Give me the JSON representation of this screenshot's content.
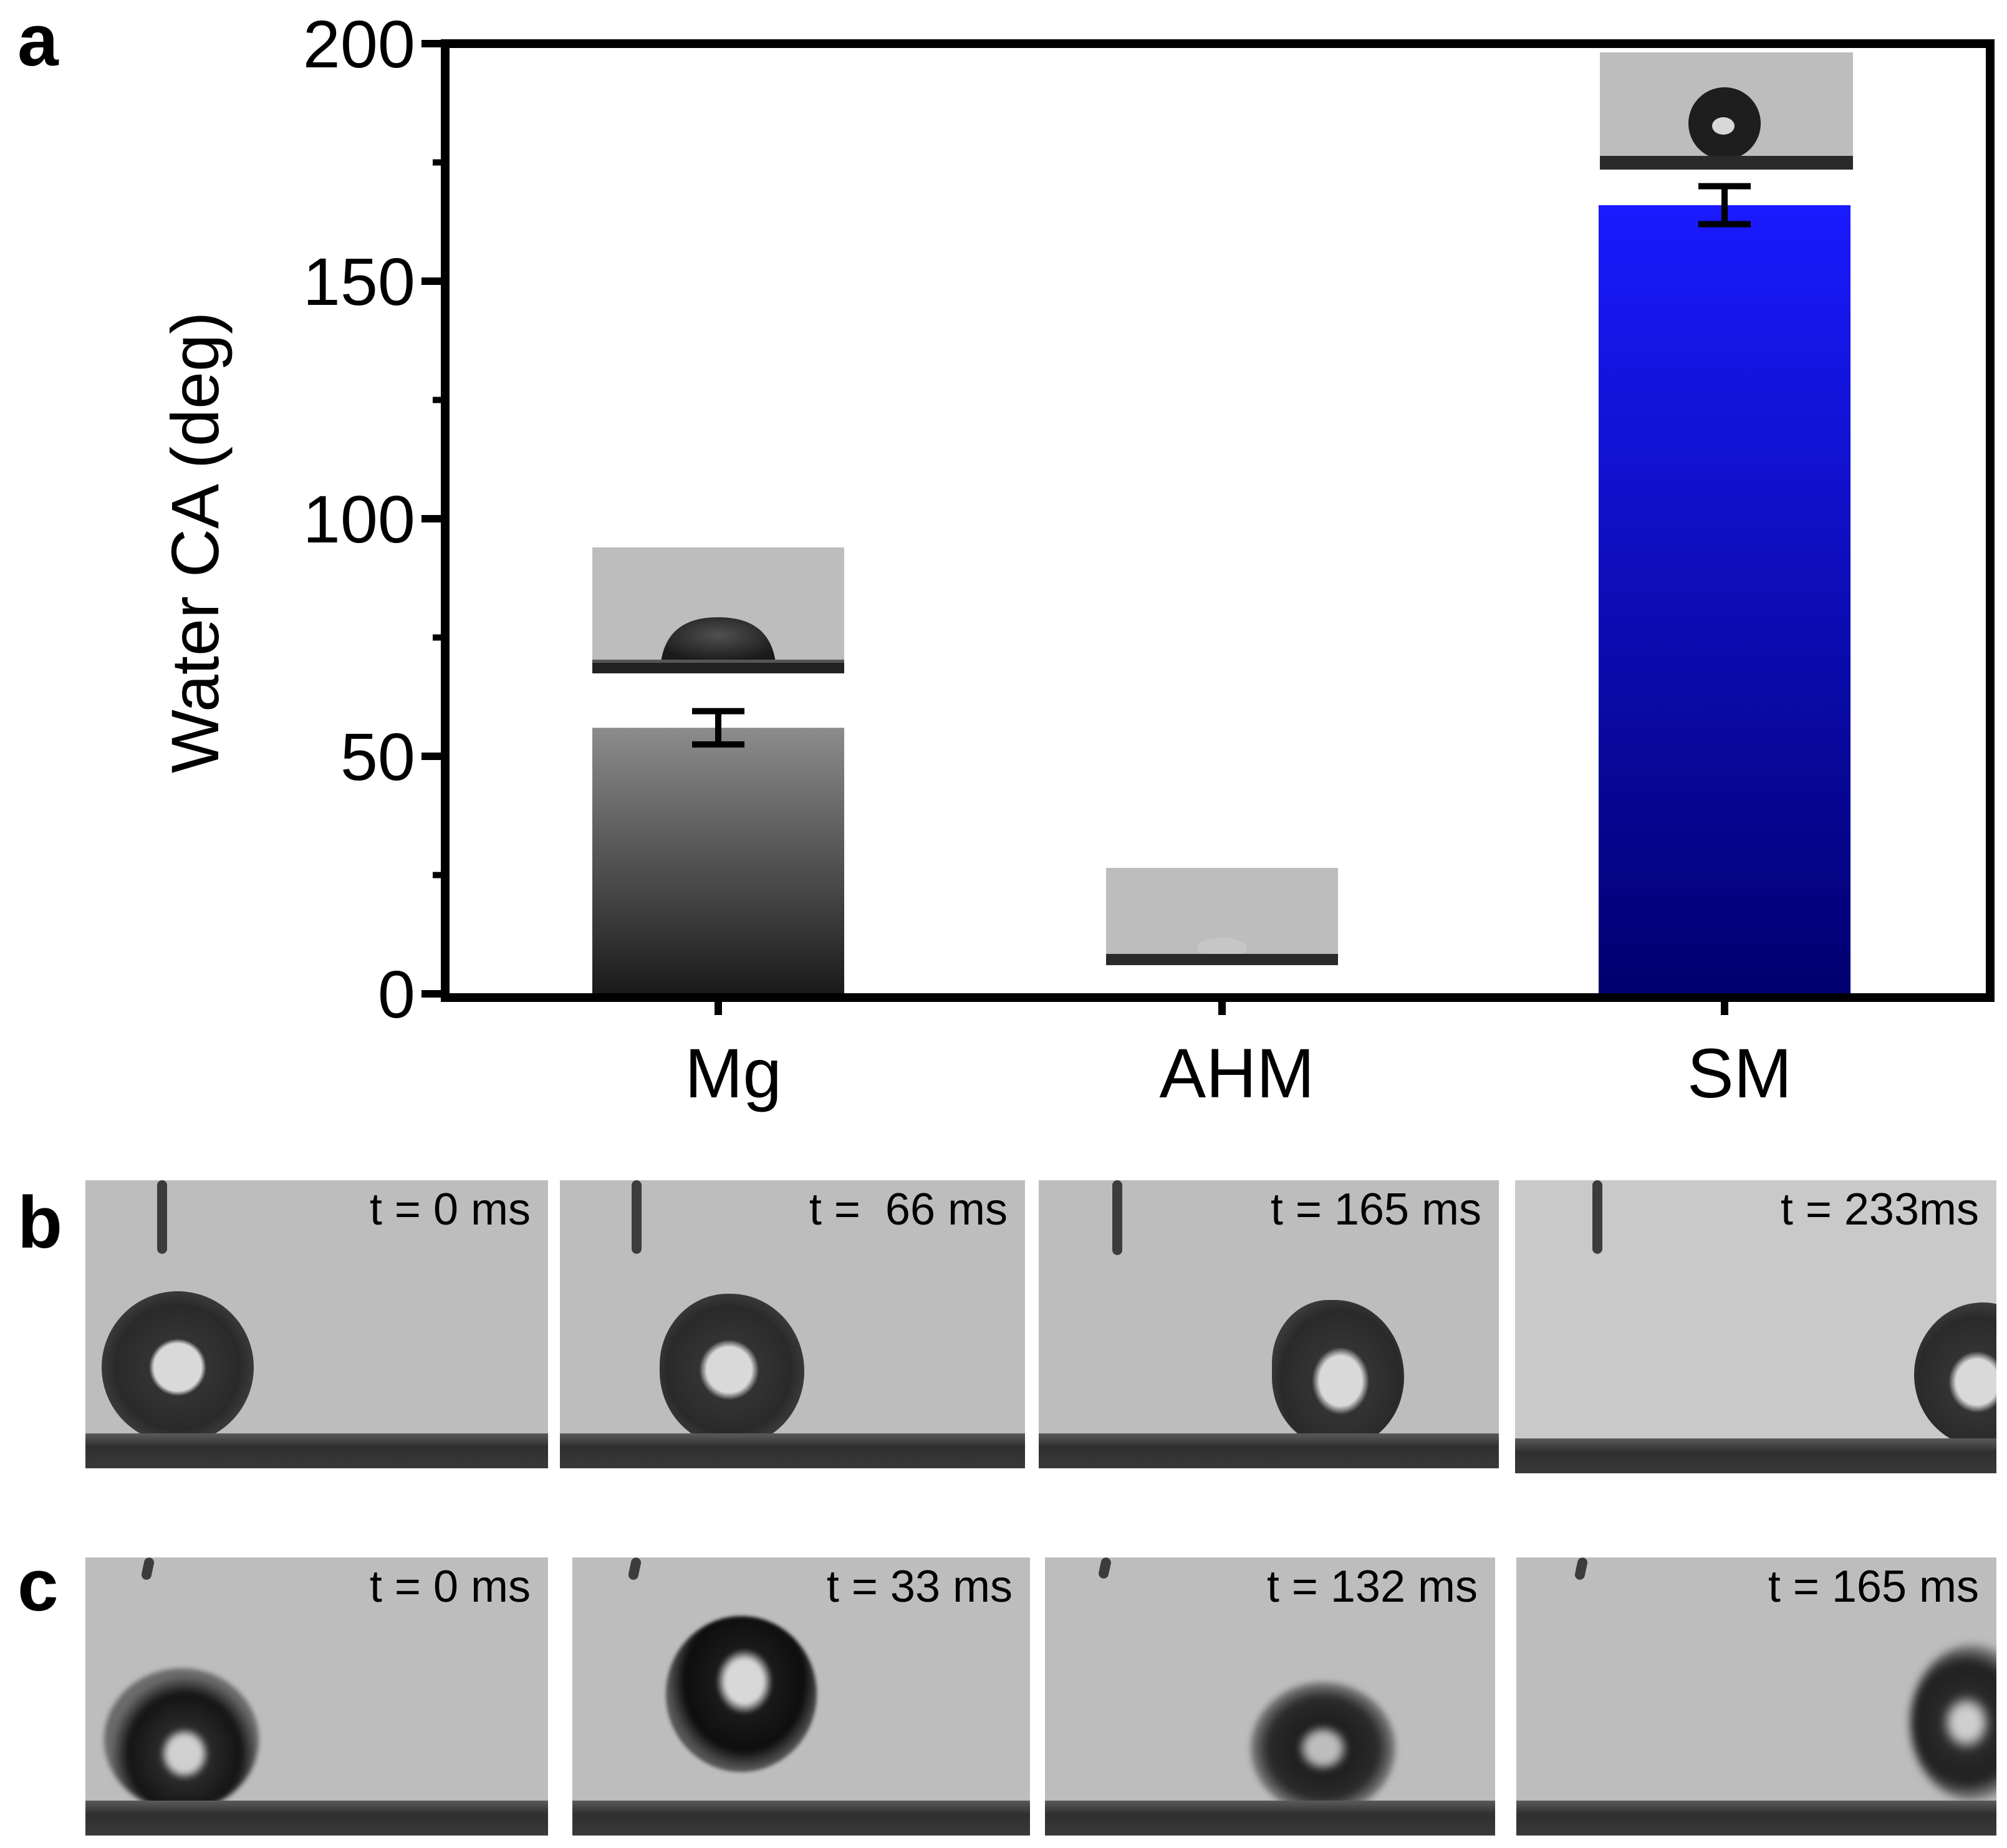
{
  "panels": {
    "a": "a",
    "b": "b",
    "c": "c"
  },
  "chart_data": {
    "type": "bar",
    "categories": [
      "Mg",
      "AHM",
      "SM"
    ],
    "values": [
      56,
      0,
      166
    ],
    "errors": [
      3.5,
      0,
      4
    ],
    "ylabel": "Water CA (deg)",
    "ylim": [
      0,
      200
    ],
    "yticks": [
      0,
      50,
      100,
      150,
      200
    ],
    "bar_colors": [
      {
        "top": "#8c8c8c",
        "bottom": "#1a1a1a"
      },
      {
        "top": "#ffffff",
        "bottom": "#ffffff"
      },
      {
        "top": "#1a1aff",
        "bottom": "#000070"
      }
    ],
    "grid": false,
    "inset_images": [
      "droplet-on-Mg",
      "droplet-on-AHM",
      "droplet-on-SM"
    ]
  },
  "sequence_b": [
    "t = 0 ms",
    "t =  66 ms",
    "t = 165 ms",
    "t = 233ms"
  ],
  "sequence_c": [
    "t = 0 ms",
    "t = 33 ms",
    "t = 132 ms",
    "t = 165 ms"
  ]
}
